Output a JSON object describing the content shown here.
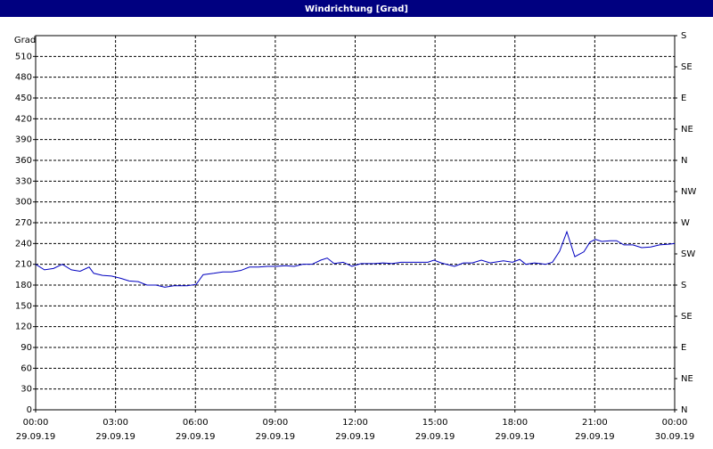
{
  "chart_data": {
    "type": "line",
    "title": "Windrichtung [Grad]",
    "y_label": "Grad",
    "x": [
      0,
      0.33,
      0.67,
      1.0,
      1.34,
      1.67,
      2.01,
      2.18,
      2.51,
      2.85,
      3.18,
      3.51,
      3.85,
      4.18,
      4.52,
      4.85,
      5.19,
      5.69,
      6.03,
      6.29,
      6.69,
      7.03,
      7.36,
      7.7,
      8.03,
      8.37,
      8.7,
      9.04,
      9.37,
      9.71,
      10.04,
      10.38,
      10.71,
      10.95,
      11.21,
      11.55,
      11.88,
      12.22,
      12.72,
      13.05,
      13.39,
      13.72,
      14.23,
      14.73,
      14.96,
      15.23,
      15.73,
      16.07,
      16.4,
      16.74,
      17.07,
      17.57,
      17.91,
      18.18,
      18.41,
      18.74,
      19.15,
      19.41,
      19.68,
      19.95,
      20.25,
      20.59,
      20.82,
      21.02,
      21.26,
      21.59,
      21.82,
      22.09,
      22.43,
      22.76,
      23.1,
      23.43,
      23.77,
      24
    ],
    "series": [
      {
        "color": "#0000c0",
        "values": [
          210,
          202,
          204,
          210,
          202,
          200,
          206,
          197,
          194,
          193,
          190,
          186,
          185,
          180,
          180,
          177,
          179,
          179,
          181,
          195,
          197,
          199,
          199,
          201,
          206,
          206,
          207,
          207,
          208,
          207,
          210,
          210,
          216,
          219,
          211,
          213,
          207,
          211,
          211,
          212,
          211,
          213,
          213,
          213,
          216,
          212,
          207,
          212,
          212,
          216,
          212,
          215,
          213,
          217,
          210,
          212,
          210,
          213,
          229,
          257,
          221,
          228,
          242,
          246,
          243,
          244,
          244,
          238,
          238,
          234,
          235,
          238,
          239,
          240
        ]
      }
    ],
    "xlim": [
      0,
      24
    ],
    "xticks": [
      {
        "value": 0,
        "label": [
          "00:00",
          "29.09.19"
        ]
      },
      {
        "value": 3,
        "label": [
          "03:00",
          "29.09.19"
        ]
      },
      {
        "value": 6,
        "label": [
          "06:00",
          "29.09.19"
        ]
      },
      {
        "value": 9,
        "label": [
          "09:00",
          "29.09.19"
        ]
      },
      {
        "value": 12,
        "label": [
          "12:00",
          "29.09.19"
        ]
      },
      {
        "value": 15,
        "label": [
          "15:00",
          "29.09.19"
        ]
      },
      {
        "value": 18,
        "label": [
          "18:00",
          "29.09.19"
        ]
      },
      {
        "value": 21,
        "label": [
          "21:00",
          "29.09.19"
        ]
      },
      {
        "value": 24,
        "label": [
          "00:00",
          "30.09.19"
        ]
      }
    ],
    "ylim": [
      0,
      540
    ],
    "yticks": [
      0,
      30,
      60,
      90,
      120,
      150,
      180,
      210,
      240,
      270,
      300,
      330,
      360,
      390,
      420,
      450,
      480,
      510
    ],
    "y2lim": [
      0,
      540
    ],
    "y2ticks": [
      {
        "value": 0,
        "label": "N"
      },
      {
        "value": 45,
        "label": "NE"
      },
      {
        "value": 90,
        "label": "E"
      },
      {
        "value": 135,
        "label": "SE"
      },
      {
        "value": 180,
        "label": "S"
      },
      {
        "value": 225,
        "label": "SW"
      },
      {
        "value": 270,
        "label": "W"
      },
      {
        "value": 315,
        "label": "NW"
      },
      {
        "value": 360,
        "label": "N"
      },
      {
        "value": 405,
        "label": "NE"
      },
      {
        "value": 450,
        "label": "E"
      },
      {
        "value": 495,
        "label": "SE"
      },
      {
        "value": 540,
        "label": "S"
      }
    ],
    "grid": true
  }
}
